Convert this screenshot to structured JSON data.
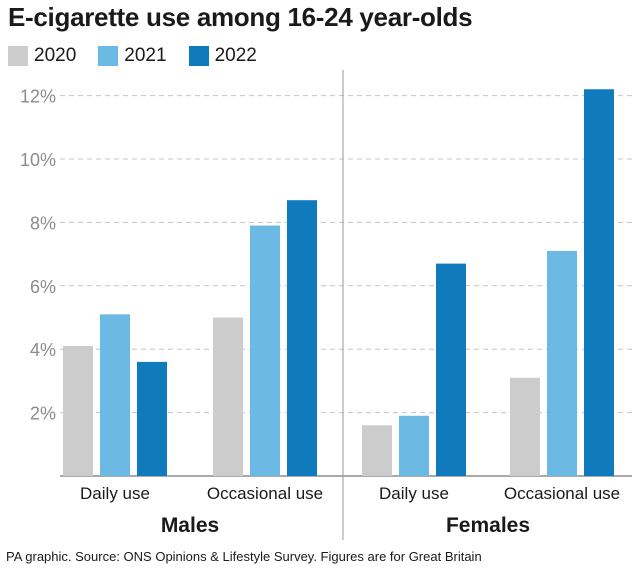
{
  "title": "E-cigarette use among 16-24 year-olds",
  "footer": "PA graphic. Source: ONS Opinions & Lifestyle Survey. Figures are for Great Britain",
  "legend": [
    {
      "name": "2020",
      "color": "#cccccc"
    },
    {
      "name": "2021",
      "color": "#6cb9e3"
    },
    {
      "name": "2022",
      "color": "#0f7bbd"
    }
  ],
  "chart_data": {
    "type": "bar",
    "title": "E-cigarette use among 16-24 year-olds",
    "xlabel": "",
    "ylabel": "",
    "ylim": [
      0,
      13
    ],
    "yticks": [
      "2%",
      "4%",
      "6%",
      "8%",
      "10%",
      "12%"
    ],
    "ytick_values": [
      2,
      4,
      6,
      8,
      10,
      12
    ],
    "grid": true,
    "legend_position": "top-left",
    "groups": [
      {
        "label": "Males",
        "categories": [
          "Daily use",
          "Occasional use"
        ],
        "series": [
          {
            "name": "2020",
            "values": [
              4.1,
              5.0
            ]
          },
          {
            "name": "2021",
            "values": [
              5.1,
              7.9
            ]
          },
          {
            "name": "2022",
            "values": [
              3.6,
              8.7
            ]
          }
        ]
      },
      {
        "label": "Females",
        "categories": [
          "Daily use",
          "Occasional use"
        ],
        "series": [
          {
            "name": "2020",
            "values": [
              1.6,
              3.1
            ]
          },
          {
            "name": "2021",
            "values": [
              1.9,
              7.1
            ]
          },
          {
            "name": "2022",
            "values": [
              6.7,
              12.2
            ]
          }
        ]
      }
    ]
  }
}
